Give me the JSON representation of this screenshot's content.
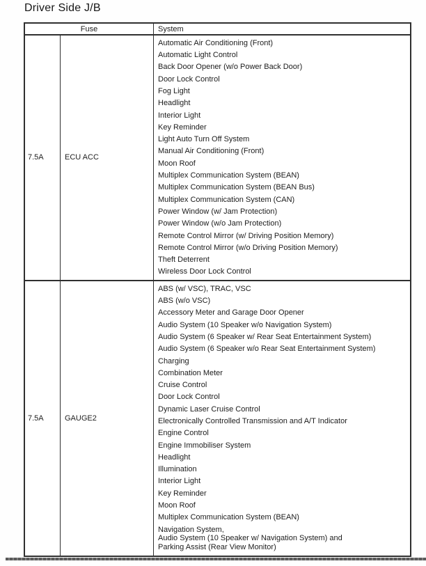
{
  "page": {
    "title": "Driver Side J/B"
  },
  "table": {
    "headers": {
      "fuse": "Fuse",
      "system": "System"
    },
    "rows": [
      {
        "amp": "7.5A",
        "name": "ECU ACC",
        "systems": [
          "Automatic Air Conditioning (Front)",
          "Automatic Light Control",
          "Back Door Opener (w/o Power Back Door)",
          "Door Lock Control",
          "Fog Light",
          "Headlight",
          "Interior Light",
          "Key Reminder",
          "Light Auto Turn Off System",
          "Manual Air Conditioning (Front)",
          "Moon Roof",
          "Multiplex Communication System (BEAN)",
          "Multiplex Communication System (BEAN Bus)",
          "Multiplex Communication System (CAN)",
          "Power Window (w/ Jam Protection)",
          "Power Window (w/o Jam Protection)",
          "Remote Control Mirror (w/ Driving Position Memory)",
          "Remote Control Mirror (w/o Driving Position Memory)",
          "Theft Deterrent",
          "Wireless Door Lock Control"
        ]
      },
      {
        "amp": "7.5A",
        "name": "GAUGE2",
        "systems": [
          "ABS (w/ VSC), TRAC, VSC",
          "ABS (w/o VSC)",
          "Accessory Meter and Garage Door Opener",
          "Audio System (10 Speaker w/o Navigation System)",
          "Audio System (6 Speaker w/ Rear Seat Entertainment System)",
          "Audio System (6 Speaker w/o Rear Seat Entertainment System)",
          "Charging",
          "Combination Meter",
          "Cruise Control",
          "Door Lock Control",
          "Dynamic Laser Cruise Control",
          "Electronically Controlled Transmission and A/T Indicator",
          "Engine Control",
          "Engine Immobiliser System",
          "Headlight",
          "Illumination",
          "Interior Light",
          "Key Reminder",
          "Moon Roof",
          "Multiplex Communication System (BEAN)",
          "Navigation System,\nAudio System (10 Speaker w/ Navigation System) and\nParking Assist (Rear View Monitor)"
        ]
      }
    ]
  }
}
